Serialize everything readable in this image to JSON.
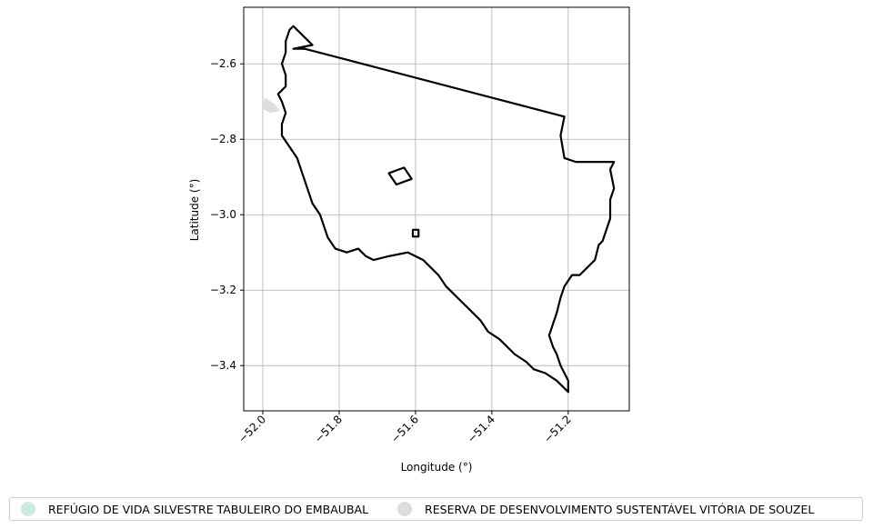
{
  "chart_data": {
    "type": "map",
    "xlabel": "Longitude (°)",
    "ylabel": "Latitude (°)",
    "xlim": [
      -52.05,
      -51.04
    ],
    "ylim": [
      -3.52,
      -2.45
    ],
    "xticks": [
      -52.0,
      -51.8,
      -51.6,
      -51.4,
      -51.2
    ],
    "xtick_labels": [
      "−52.0",
      "−51.8",
      "−51.6",
      "−51.4",
      "−51.2"
    ],
    "yticks": [
      -2.6,
      -2.8,
      -3.0,
      -3.2,
      -3.4
    ],
    "ytick_labels": [
      "−2.6",
      "−2.8",
      "−3.0",
      "−3.2",
      "−3.4"
    ],
    "grid": true,
    "legend_position": "bottom-center",
    "legend": [
      {
        "label": "REFÚGIO DE VIDA SILVESTRE TABULEIRO DO EMBAUBAL",
        "color": "#cdeae0"
      },
      {
        "label": "RESERVA DE DESENVOLVIMENTO SUSTENTÁVEL VITÓRIA DE SOUZEL",
        "color": "#dddddd"
      }
    ],
    "boundaries": [
      {
        "name": "municipality-outline",
        "stroke": "#000000",
        "closed": true,
        "coords": [
          [
            -51.92,
            -2.56
          ],
          [
            -51.89,
            -2.56
          ],
          [
            -51.21,
            -2.74
          ],
          [
            -51.22,
            -2.79
          ],
          [
            -51.21,
            -2.85
          ],
          [
            -51.18,
            -2.86
          ],
          [
            -51.08,
            -2.86
          ],
          [
            -51.09,
            -2.88
          ],
          [
            -51.08,
            -2.93
          ],
          [
            -51.09,
            -2.96
          ],
          [
            -51.09,
            -3.01
          ],
          [
            -51.1,
            -3.04
          ],
          [
            -51.11,
            -3.07
          ],
          [
            -51.12,
            -3.08
          ],
          [
            -51.13,
            -3.12
          ],
          [
            -51.15,
            -3.14
          ],
          [
            -51.17,
            -3.16
          ],
          [
            -51.19,
            -3.16
          ],
          [
            -51.21,
            -3.19
          ],
          [
            -51.22,
            -3.22
          ],
          [
            -51.23,
            -3.26
          ],
          [
            -51.24,
            -3.29
          ],
          [
            -51.25,
            -3.32
          ],
          [
            -51.24,
            -3.35
          ],
          [
            -51.23,
            -3.37
          ],
          [
            -51.22,
            -3.4
          ],
          [
            -51.21,
            -3.42
          ],
          [
            -51.2,
            -3.44
          ],
          [
            -51.2,
            -3.47
          ],
          [
            -51.23,
            -3.44
          ],
          [
            -51.26,
            -3.42
          ],
          [
            -51.29,
            -3.41
          ],
          [
            -51.31,
            -3.39
          ],
          [
            -51.34,
            -3.37
          ],
          [
            -51.36,
            -3.35
          ],
          [
            -51.38,
            -3.33
          ],
          [
            -51.41,
            -3.31
          ],
          [
            -51.43,
            -3.28
          ],
          [
            -51.46,
            -3.25
          ],
          [
            -51.49,
            -3.22
          ],
          [
            -51.52,
            -3.19
          ],
          [
            -51.54,
            -3.16
          ],
          [
            -51.56,
            -3.14
          ],
          [
            -51.58,
            -3.12
          ],
          [
            -51.62,
            -3.1
          ],
          [
            -51.67,
            -3.11
          ],
          [
            -51.71,
            -3.12
          ],
          [
            -51.73,
            -3.11
          ],
          [
            -51.75,
            -3.09
          ],
          [
            -51.78,
            -3.1
          ],
          [
            -51.81,
            -3.09
          ],
          [
            -51.83,
            -3.06
          ],
          [
            -51.84,
            -3.03
          ],
          [
            -51.85,
            -3.0
          ],
          [
            -51.87,
            -2.97
          ],
          [
            -51.88,
            -2.94
          ],
          [
            -51.89,
            -2.91
          ],
          [
            -51.9,
            -2.88
          ],
          [
            -51.91,
            -2.85
          ],
          [
            -51.93,
            -2.82
          ],
          [
            -51.95,
            -2.79
          ],
          [
            -51.95,
            -2.76
          ],
          [
            -51.94,
            -2.73
          ],
          [
            -51.95,
            -2.7
          ],
          [
            -51.96,
            -2.68
          ],
          [
            -51.94,
            -2.66
          ],
          [
            -51.94,
            -2.63
          ],
          [
            -51.95,
            -2.6
          ],
          [
            -51.94,
            -2.57
          ],
          [
            -51.94,
            -2.54
          ],
          [
            -51.93,
            -2.51
          ],
          [
            -51.92,
            -2.5
          ],
          [
            -51.9,
            -2.52
          ],
          [
            -51.88,
            -2.54
          ],
          [
            -51.87,
            -2.55
          ]
        ]
      },
      {
        "name": "diamond-polygon",
        "stroke": "#000000",
        "closed": true,
        "coords": [
          [
            -51.67,
            -2.89
          ],
          [
            -51.63,
            -2.875
          ],
          [
            -51.61,
            -2.905
          ],
          [
            -51.65,
            -2.92
          ]
        ]
      },
      {
        "name": "small-square-polygon",
        "stroke": "#000000",
        "closed": true,
        "coords": [
          [
            -51.607,
            -3.04
          ],
          [
            -51.592,
            -3.04
          ],
          [
            -51.592,
            -3.058
          ],
          [
            -51.607,
            -3.058
          ]
        ]
      }
    ],
    "areas": [
      {
        "name": "rds-vitoria-de-souzel",
        "fill": "#dddddd",
        "coords": [
          [
            -51.995,
            -2.69
          ],
          [
            -51.97,
            -2.705
          ],
          [
            -51.955,
            -2.725
          ],
          [
            -51.98,
            -2.73
          ],
          [
            -52.0,
            -2.72
          ]
        ]
      }
    ]
  }
}
